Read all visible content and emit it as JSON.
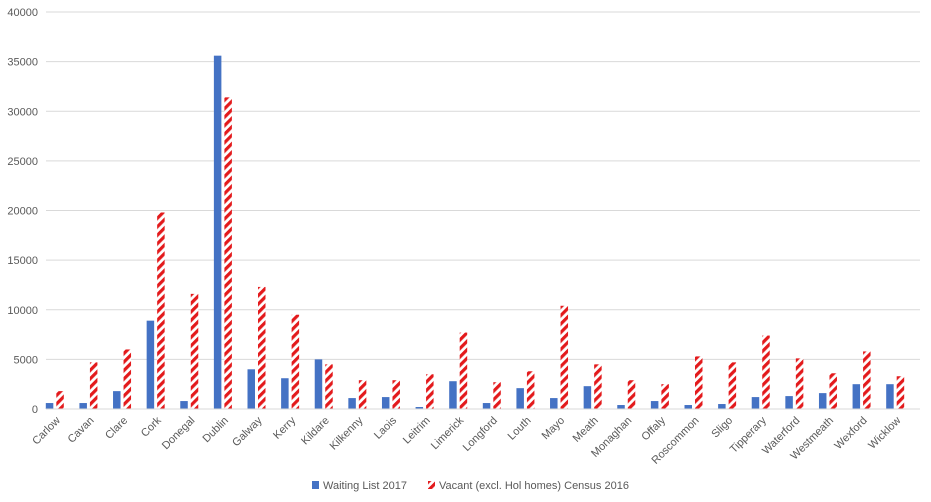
{
  "chart_data": {
    "type": "bar",
    "title": "",
    "xlabel": "",
    "ylabel": "",
    "ylim": [
      0,
      40000
    ],
    "yticks": [
      0,
      5000,
      10000,
      15000,
      20000,
      25000,
      30000,
      35000,
      40000
    ],
    "grid": true,
    "legend_position": "bottom",
    "categories": [
      "Carlow",
      "Cavan",
      "Clare",
      "Cork",
      "Donegal",
      "Dublin",
      "Galway",
      "Kerry",
      "Kildare",
      "Kilkenny",
      "Laois",
      "Leitrim",
      "Limerick",
      "Longford",
      "Louth",
      "Mayo",
      "Meath",
      "Monaghan",
      "Offaly",
      "Roscommon",
      "Sligo",
      "Tipperary",
      "Waterford",
      "Westmeath",
      "Wexford",
      "Wicklow"
    ],
    "series": [
      {
        "name": "Waiting List 2017",
        "color": "#4472C4",
        "pattern": "solid",
        "values": [
          600,
          600,
          1800,
          8900,
          800,
          35600,
          4000,
          3100,
          5000,
          1100,
          1200,
          200,
          2800,
          600,
          2100,
          1100,
          2300,
          400,
          800,
          400,
          500,
          1200,
          1300,
          1600,
          2500,
          2500
        ]
      },
      {
        "name": "Vacant (excl. Hol homes) Census 2016",
        "color": "#E31A1C",
        "pattern": "diagonal-stripes",
        "values": [
          1800,
          4700,
          6000,
          19800,
          11600,
          31400,
          12300,
          9500,
          4500,
          2900,
          2900,
          3500,
          7700,
          2700,
          3800,
          10400,
          4500,
          2900,
          2500,
          5300,
          4700,
          7400,
          5100,
          3600,
          5800,
          3300
        ]
      }
    ]
  }
}
